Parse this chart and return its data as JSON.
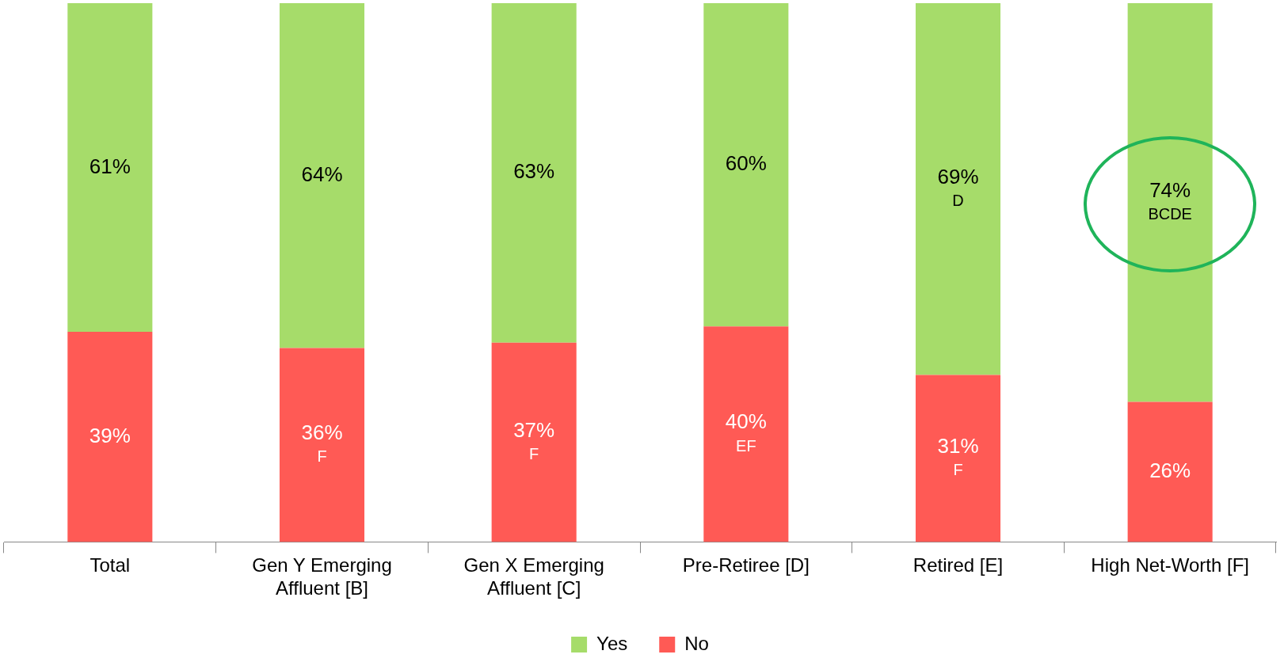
{
  "chart_data": {
    "type": "bar",
    "stacked": true,
    "legend": "bottom",
    "grid": false,
    "tick_labels": "x",
    "categories": [
      "Total",
      "Gen Y Emerging Affluent [B]",
      "Gen X Emerging Affluent [C]",
      "Pre-Retiree [D]",
      "Retired [E]",
      "High Net-Worth [F]"
    ],
    "series": [
      {
        "name": "No",
        "color": "#ff5a55",
        "values": [
          39,
          36,
          37,
          40,
          31,
          26
        ],
        "value_labels": [
          "39%",
          "36%\nF",
          "37%\nF",
          "40%\nEF",
          "31%\nF",
          "26%"
        ]
      },
      {
        "name": "Yes",
        "color": "#a6dc6a",
        "values": [
          61,
          64,
          63,
          60,
          69,
          74
        ],
        "value_labels": [
          "61%",
          "64%",
          "63%",
          "60%",
          "69%\nD",
          "74%\nBCDE"
        ]
      }
    ]
  }
}
